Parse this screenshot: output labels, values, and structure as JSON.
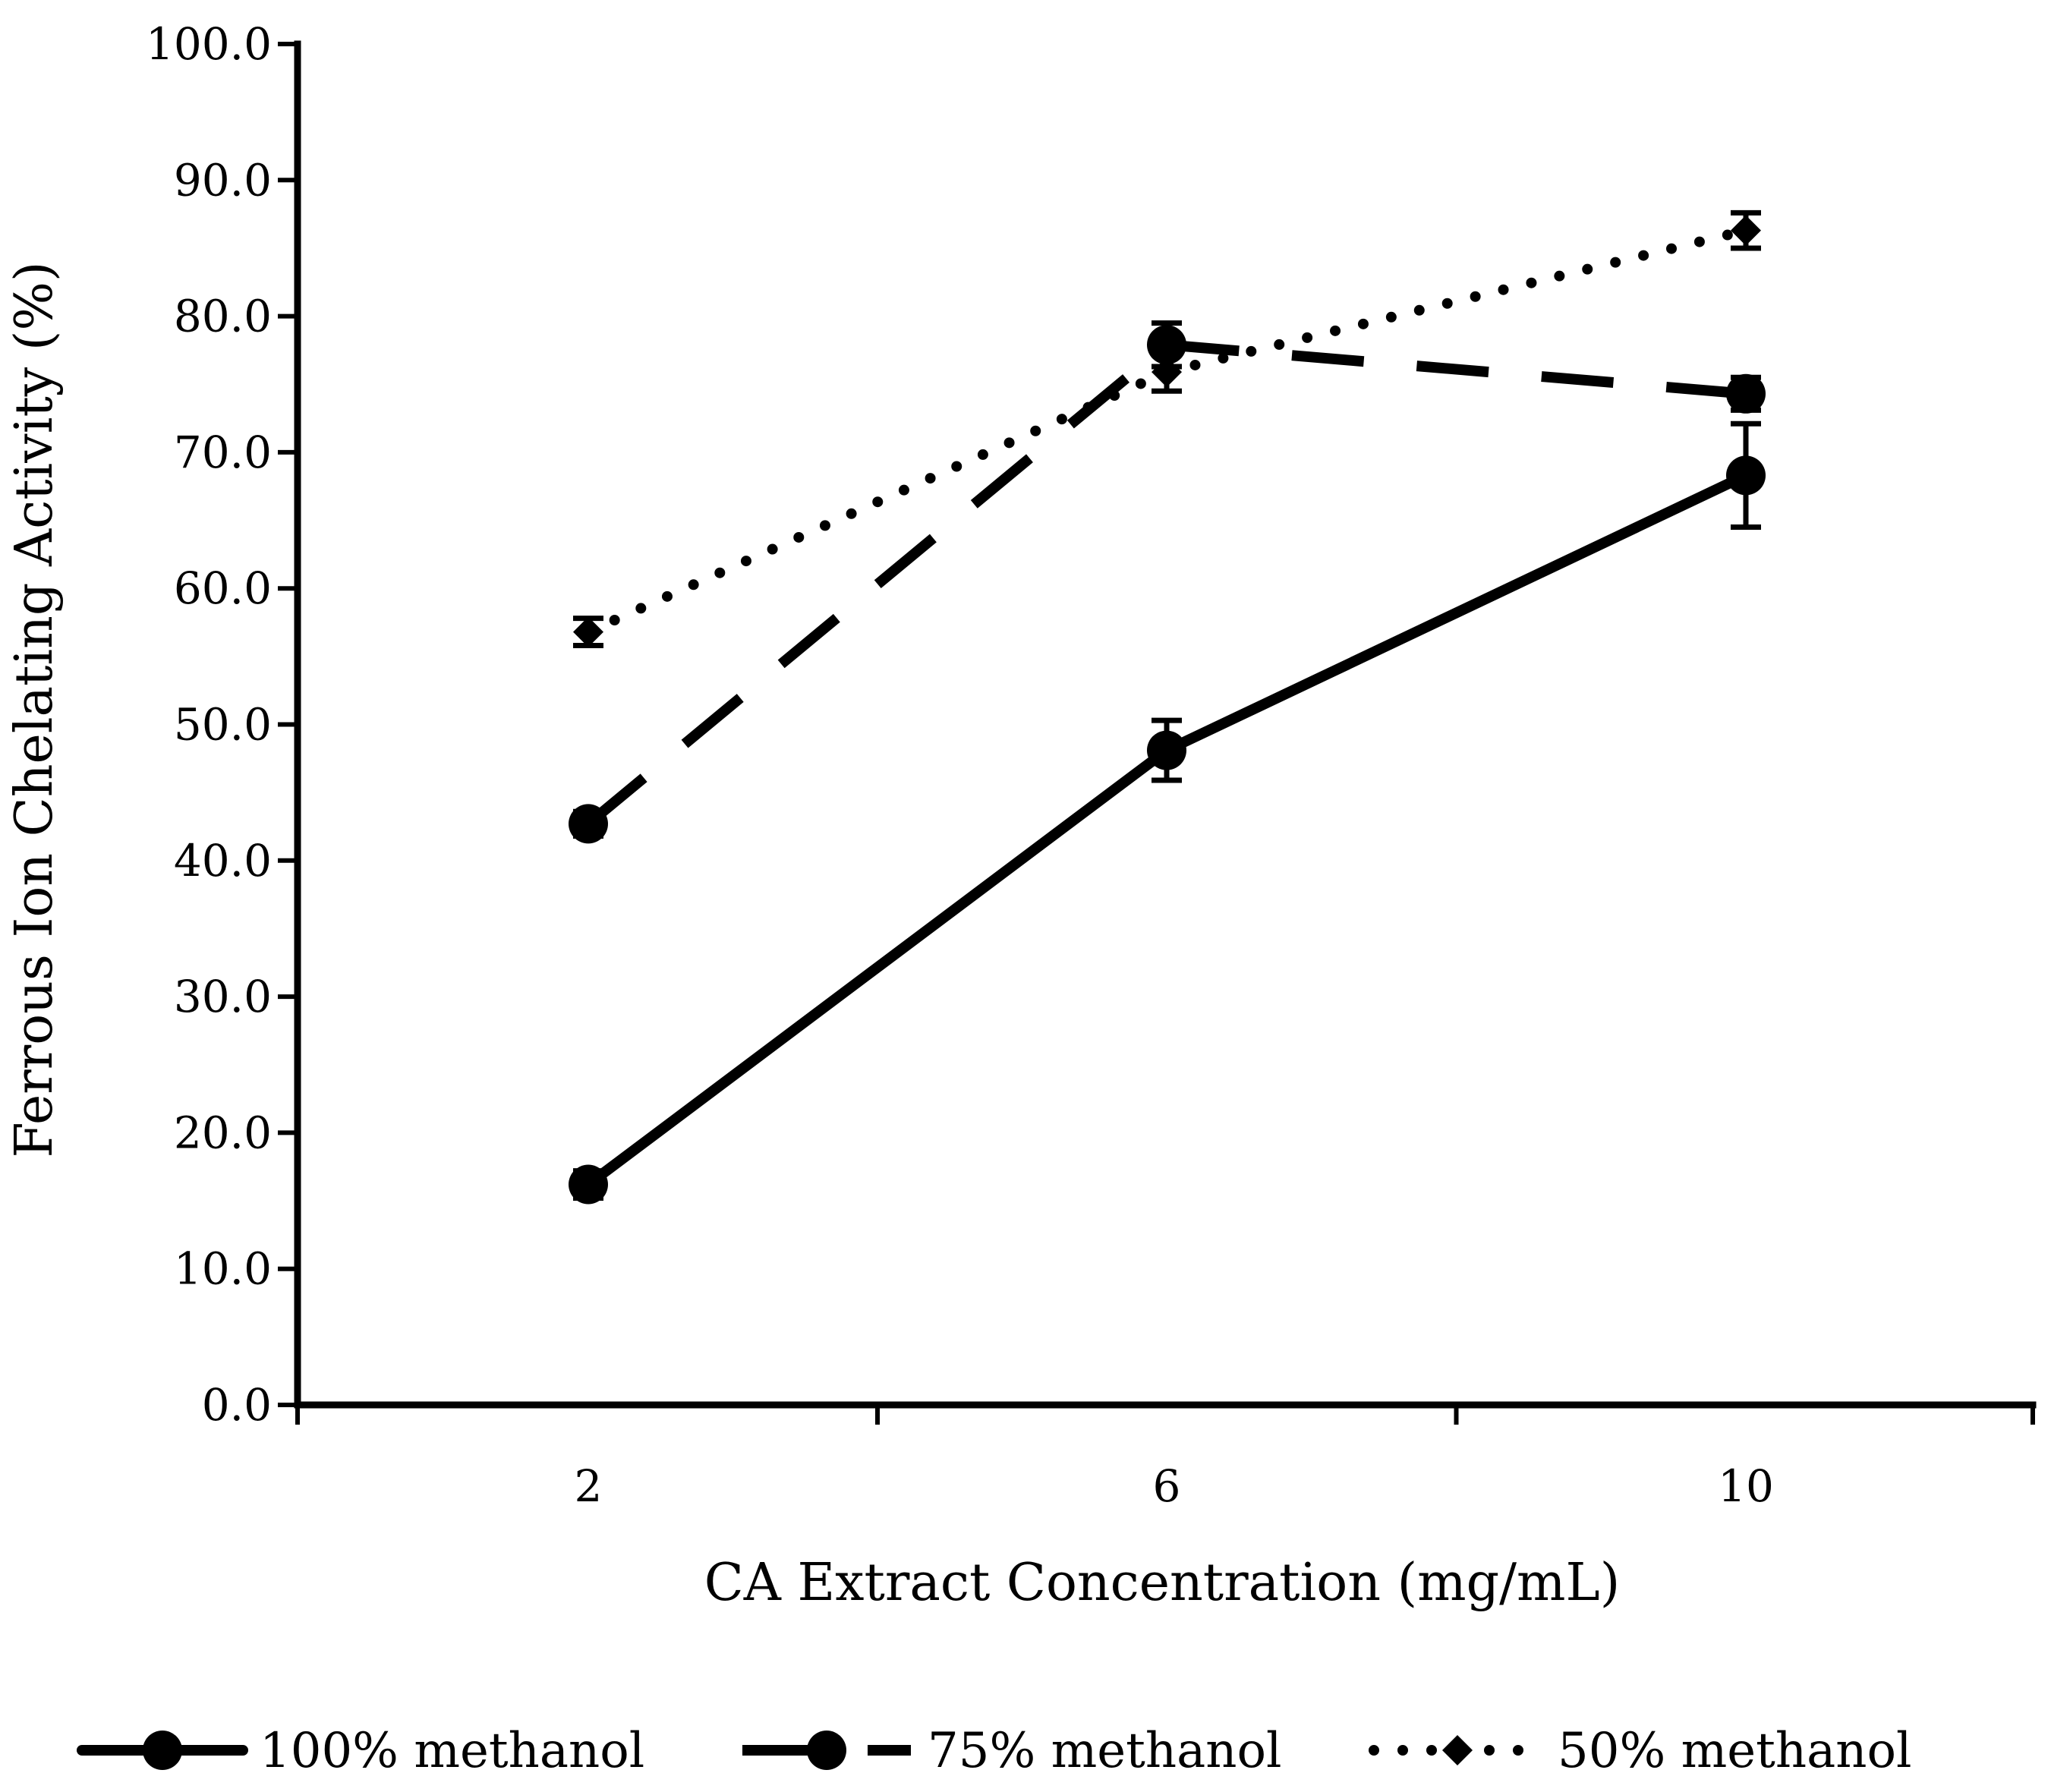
{
  "chart_data": {
    "type": "line",
    "title": "",
    "xlabel": "CA Extract Concentration (mg/mL)",
    "ylabel": "Ferrous Ion Chelating Activity (%)",
    "ylim": [
      0,
      100
    ],
    "y_ticks": [
      "0.0",
      "10.0",
      "20.0",
      "30.0",
      "40.0",
      "50.0",
      "60.0",
      "70.0",
      "80.0",
      "90.0",
      "100.0"
    ],
    "categories": [
      "2",
      "6",
      "10"
    ],
    "grid": false,
    "legend_position": "bottom",
    "series": [
      {
        "name": "100% methanol",
        "line_style": "solid",
        "marker": "circle",
        "color": "#000000",
        "values": [
          16.2,
          48.1,
          68.3
        ],
        "errors": [
          1.0,
          2.2,
          3.8
        ]
      },
      {
        "name": "75% methanol",
        "line_style": "dashed",
        "marker": "circle",
        "color": "#000000",
        "values": [
          42.7,
          77.9,
          74.3
        ],
        "errors": [
          0.9,
          1.6,
          1.2
        ]
      },
      {
        "name": "50% methanol",
        "line_style": "dotted",
        "marker": "diamond",
        "color": "#000000",
        "values": [
          56.8,
          75.9,
          86.3
        ],
        "errors": [
          1.0,
          1.4,
          1.3
        ]
      }
    ]
  }
}
